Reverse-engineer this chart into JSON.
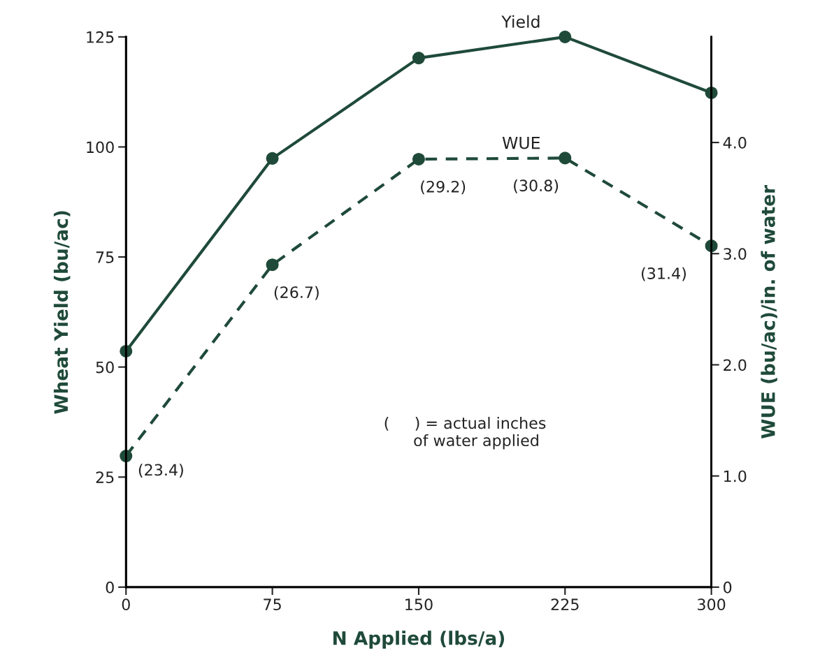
{
  "chart_data": {
    "type": "line",
    "xlabel": "N Applied (lbs/a)",
    "ylabel": "Wheat Yield (bu/ac)",
    "y2label": "WUE (bu/ac)/in. of water",
    "x": [
      0,
      75,
      150,
      225,
      300
    ],
    "series": [
      {
        "name": "Yield",
        "color": "#1f4a3a",
        "values": [
          53.6,
          97.4,
          120.2,
          125,
          112.3
        ],
        "marker": "circle",
        "line_style": "solid"
      },
      {
        "name": "WUE",
        "color": "#1f4a3a",
        "values": [
          1.18,
          2.9,
          3.85,
          3.86,
          3.07
        ],
        "axis": "y2",
        "marker": "circle",
        "line_style": "dashed"
      }
    ],
    "xlim": [
      0,
      300
    ],
    "xticks": [
      0,
      75,
      150,
      225,
      300
    ],
    "ylim": [
      0,
      125
    ],
    "yticks": [
      0,
      25,
      50,
      75,
      100,
      125
    ],
    "y2lim": [
      0,
      4.95
    ],
    "y2ticks": [
      0,
      {
        "value": 1,
        "label": "1.0"
      },
      {
        "value": 2,
        "label": "2.0"
      },
      {
        "value": 3,
        "label": "3.0"
      },
      {
        "value": 4,
        "label": "4.0"
      }
    ],
    "annotations": [
      "(23.4)",
      "(26.7)",
      "(29.2)",
      "(30.8)",
      "(31.4)",
      "(     ) = actual inches\n      of water applied"
    ],
    "grid": false,
    "legend": false
  }
}
